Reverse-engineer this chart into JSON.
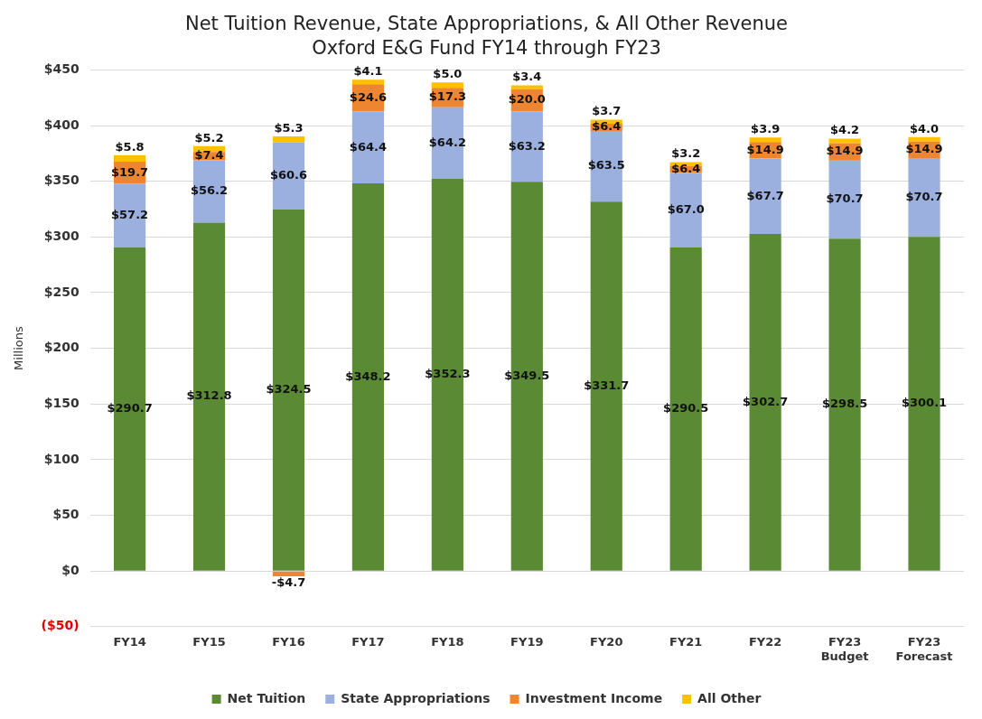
{
  "chart_data": {
    "type": "bar",
    "stacked": true,
    "title": "Net Tuition Revenue, State Appropriations, & All Other Revenue",
    "subtitle": "Oxford E&G Fund FY14 through FY23",
    "ylabel": "Millions",
    "categories": [
      "FY14",
      "FY15",
      "FY16",
      "FY17",
      "FY18",
      "FY19",
      "FY20",
      "FY21",
      "FY22",
      "FY23\nBudget",
      "FY23\nForecast"
    ],
    "series": [
      {
        "name": "Net Tuition",
        "color": "#5a8a34",
        "values": [
          290.7,
          312.8,
          324.5,
          348.2,
          352.3,
          349.5,
          331.7,
          290.5,
          302.7,
          298.5,
          300.1
        ],
        "value_labels": [
          "$290.7",
          "$312.8",
          "$324.5",
          "$348.2",
          "$352.3",
          "$349.5",
          "$331.7",
          "$290.5",
          "$302.7",
          "$298.5",
          "$300.1"
        ]
      },
      {
        "name": "State Appropriations",
        "color": "#9cb0e0",
        "values": [
          57.2,
          56.2,
          60.6,
          64.4,
          64.2,
          63.2,
          63.5,
          67.0,
          67.7,
          70.7,
          70.7
        ],
        "value_labels": [
          "$57.2",
          "$56.2",
          "$60.6",
          "$64.4",
          "$64.2",
          "$63.2",
          "$63.5",
          "$67.0",
          "$67.7",
          "$70.7",
          "$70.7"
        ]
      },
      {
        "name": "Investment Income",
        "color": "#ee8530",
        "values": [
          19.7,
          7.4,
          -4.7,
          24.6,
          17.3,
          20.0,
          6.4,
          6.4,
          14.9,
          14.9,
          14.9
        ],
        "value_labels": [
          "$19.7",
          "$7.4",
          "-$4.7",
          "$24.6",
          "$17.3",
          "$20.0",
          "$6.4",
          "$6.4",
          "$14.9",
          "$14.9",
          "$14.9"
        ]
      },
      {
        "name": "All Other",
        "color": "#ffc000",
        "values": [
          5.8,
          5.2,
          5.3,
          4.1,
          5.0,
          3.4,
          3.7,
          3.2,
          3.9,
          4.2,
          4.0
        ],
        "value_labels": [
          "$5.8",
          "$5.2",
          "$5.3",
          "$4.1",
          "$5.0",
          "$3.4",
          "$3.7",
          "$3.2",
          "$3.9",
          "$4.2",
          "$4.0"
        ]
      }
    ],
    "ylim": [
      -50,
      450
    ],
    "yticks": [
      {
        "value": -50,
        "label": "($50)"
      },
      {
        "value": 0,
        "label": "$0"
      },
      {
        "value": 50,
        "label": "$50"
      },
      {
        "value": 100,
        "label": "$100"
      },
      {
        "value": 150,
        "label": "$150"
      },
      {
        "value": 200,
        "label": "$200"
      },
      {
        "value": 250,
        "label": "$250"
      },
      {
        "value": 300,
        "label": "$300"
      },
      {
        "value": 350,
        "label": "$350"
      },
      {
        "value": 400,
        "label": "$400"
      },
      {
        "value": 450,
        "label": "$450"
      }
    ],
    "grid": "y",
    "legend": "bottom"
  }
}
